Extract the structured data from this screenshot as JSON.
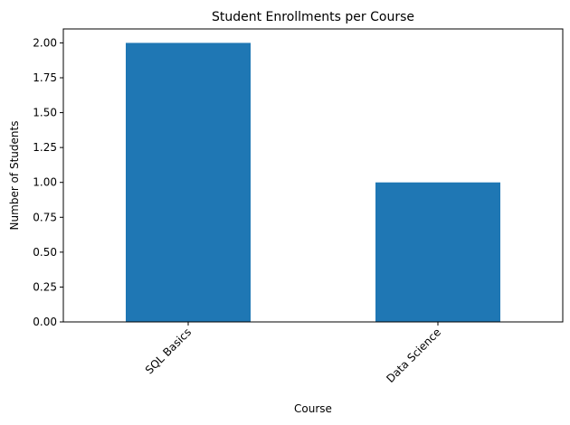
{
  "chart_data": {
    "type": "bar",
    "title": "Student Enrollments per Course",
    "x_label": "Course",
    "y_label": "Number of Students",
    "categories": [
      "SQL Basics",
      "Data Science"
    ],
    "values": [
      2,
      1
    ],
    "color": "#1f77b4",
    "ylim": [
      0,
      2.1
    ],
    "yticks": [
      {
        "value": 0,
        "label": "0.00"
      },
      {
        "value": 0.25,
        "label": "0.25"
      },
      {
        "value": 0.5,
        "label": "0.50"
      },
      {
        "value": 0.75,
        "label": "0.75"
      },
      {
        "value": 1,
        "label": "1.00"
      },
      {
        "value": 1.25,
        "label": "1.25"
      },
      {
        "value": 1.5,
        "label": "1.50"
      },
      {
        "value": 1.75,
        "label": "1.75"
      },
      {
        "value": 2,
        "label": "2.00"
      }
    ],
    "grid": false
  }
}
